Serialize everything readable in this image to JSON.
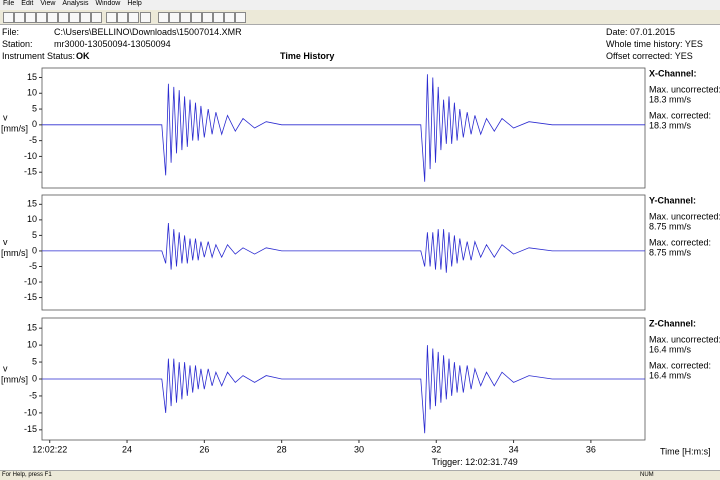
{
  "menu": [
    "File",
    "Edit",
    "View",
    "Analysis",
    "Window",
    "Help"
  ],
  "header": {
    "file_label": "File:",
    "file": "C:\\Users\\BELLINO\\Downloads\\15007014.XMR",
    "station_label": "Station:",
    "station": "mr3000-13050094-13050094",
    "status_label": "Instrument Status:",
    "status": "OK",
    "title": "Time History",
    "date": "Date:  07.01.2015",
    "whole": "Whole time history: YES",
    "offset": "Offset corrected: YES"
  },
  "chart_data": [
    {
      "type": "line",
      "title": "X-Channel:",
      "ylabel": "v",
      "yunit": "[mm/s]",
      "annotations": [
        "Max. uncorrected:",
        "18.3 mm/s",
        "Max. corrected:",
        "18.3 mm/s"
      ],
      "color": "#2a2ad0",
      "xlim": [
        21.8,
        37.4
      ],
      "ylim": [
        -20,
        18
      ],
      "yticks": [
        15,
        10,
        5,
        0,
        -5,
        -10,
        -15
      ],
      "x": [
        21.8,
        24.9,
        25.0,
        25.07,
        25.14,
        25.21,
        25.28,
        25.35,
        25.42,
        25.49,
        25.56,
        25.63,
        25.7,
        25.77,
        25.84,
        25.91,
        26.0,
        26.1,
        26.2,
        26.3,
        26.45,
        26.6,
        26.8,
        27.0,
        27.3,
        27.6,
        28,
        31.6,
        31.7,
        31.77,
        31.84,
        31.91,
        31.98,
        32.05,
        32.12,
        32.19,
        32.26,
        32.33,
        32.4,
        32.47,
        32.54,
        32.61,
        32.7,
        32.8,
        32.9,
        33.0,
        33.15,
        33.3,
        33.5,
        33.7,
        34.0,
        34.4,
        35,
        37.4
      ],
      "values": [
        0,
        0,
        -16,
        13,
        -12,
        12,
        -9,
        11,
        -8,
        9,
        -7,
        8,
        -5,
        7,
        -5,
        6,
        -4,
        5,
        -3,
        4,
        -3,
        3,
        -2,
        2,
        -1,
        1,
        0,
        0,
        -18,
        16,
        -14,
        15,
        -12,
        12,
        -8,
        8,
        -6,
        9,
        -6,
        7,
        -5,
        5,
        -4,
        4,
        -3,
        3,
        -3,
        2,
        -2,
        2,
        -1,
        1,
        0,
        0
      ]
    },
    {
      "type": "line",
      "title": "Y-Channel:",
      "ylabel": "v",
      "yunit": "[mm/s]",
      "annotations": [
        "Max. uncorrected:",
        "8.75 mm/s",
        "Max. corrected:",
        "8.75 mm/s"
      ],
      "color": "#2a2ad0",
      "xlim": [
        21.8,
        37.4
      ],
      "ylim": [
        -19,
        18
      ],
      "yticks": [
        15,
        10,
        5,
        0,
        -5,
        -10,
        -15
      ],
      "x": [
        21.8,
        24.9,
        25.0,
        25.07,
        25.14,
        25.21,
        25.28,
        25.35,
        25.42,
        25.49,
        25.56,
        25.63,
        25.7,
        25.77,
        25.84,
        25.91,
        26.0,
        26.1,
        26.2,
        26.3,
        26.45,
        26.6,
        26.8,
        27.0,
        27.3,
        27.6,
        28,
        31.6,
        31.7,
        31.77,
        31.84,
        31.91,
        31.98,
        32.05,
        32.12,
        32.19,
        32.26,
        32.33,
        32.4,
        32.47,
        32.54,
        32.61,
        32.7,
        32.8,
        32.9,
        33.0,
        33.15,
        33.3,
        33.5,
        33.7,
        34.0,
        34.4,
        35,
        37.4
      ],
      "values": [
        0,
        0,
        -4,
        9,
        -6,
        7,
        -5,
        6,
        -4,
        5,
        -4,
        4,
        -3,
        4,
        -3,
        3,
        -2,
        3,
        -2,
        2,
        -2,
        2,
        -1,
        1,
        -1,
        1,
        0,
        0,
        -5,
        6,
        -5,
        6,
        -6,
        7,
        -6,
        7,
        -7,
        6,
        -5,
        5,
        -4,
        4,
        -3,
        3,
        -3,
        3,
        -2,
        2,
        -2,
        2,
        -1,
        1,
        0,
        0
      ]
    },
    {
      "type": "line",
      "title": "Z-Channel:",
      "ylabel": "v",
      "yunit": "[mm/s]",
      "annotations": [
        "Max. uncorrected:",
        "16.4 mm/s",
        "Max. corrected:",
        "16.4 mm/s"
      ],
      "color": "#2a2ad0",
      "xlim": [
        21.8,
        37.4
      ],
      "ylim": [
        -18,
        18
      ],
      "yticks": [
        15,
        10,
        5,
        0,
        -5,
        -10,
        -15
      ],
      "xticks": [
        {
          "value": 22,
          "label": "12:02:22"
        },
        24,
        26,
        28,
        30,
        32,
        34,
        36
      ],
      "xlabel": "Time [H:m:s]",
      "x": [
        21.8,
        24.9,
        25.0,
        25.07,
        25.14,
        25.21,
        25.28,
        25.35,
        25.42,
        25.49,
        25.56,
        25.63,
        25.7,
        25.77,
        25.84,
        25.91,
        26.0,
        26.1,
        26.2,
        26.3,
        26.45,
        26.6,
        26.8,
        27.0,
        27.3,
        27.6,
        28,
        31.6,
        31.7,
        31.77,
        31.84,
        31.91,
        31.98,
        32.05,
        32.12,
        32.19,
        32.26,
        32.33,
        32.4,
        32.47,
        32.54,
        32.61,
        32.7,
        32.8,
        32.9,
        33.0,
        33.15,
        33.3,
        33.5,
        33.7,
        34.0,
        34.4,
        35,
        37.4
      ],
      "values": [
        0,
        0,
        -10,
        6,
        -8,
        6,
        -7,
        5,
        -6,
        5,
        -5,
        4,
        -4,
        4,
        -3,
        3,
        -3,
        3,
        -2,
        2,
        -2,
        2,
        -1,
        1,
        -1,
        1,
        0,
        0,
        -16,
        10,
        -9,
        9,
        -8,
        8,
        -7,
        7,
        -6,
        6,
        -5,
        5,
        -4,
        4,
        -4,
        4,
        -3,
        3,
        -2,
        2,
        -2,
        2,
        -1,
        1,
        0,
        0
      ]
    }
  ],
  "footer": {
    "trigger": "Trigger: 12:02:31.749",
    "help": "For Help, press F1",
    "num": "NUM"
  }
}
